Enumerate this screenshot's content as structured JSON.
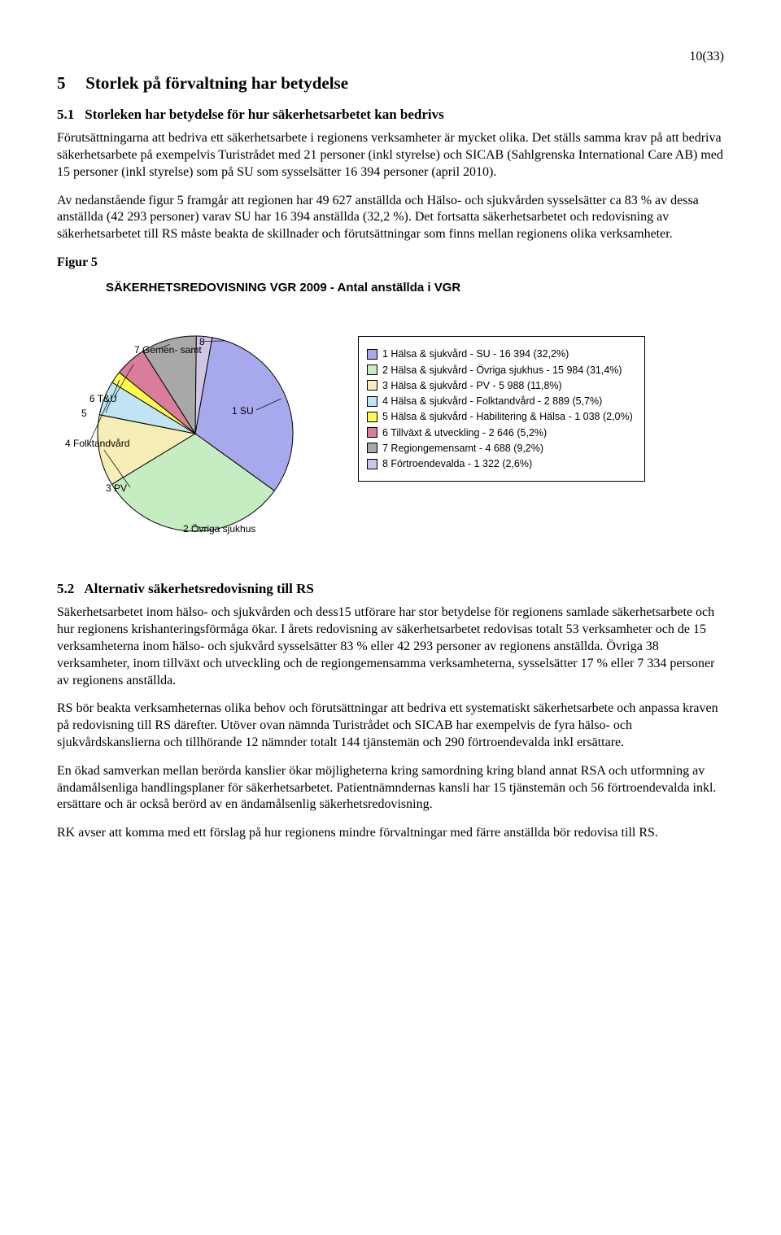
{
  "page_number": "10(33)",
  "section5": {
    "number": "5",
    "title": "Storlek på förvaltning har betydelse"
  },
  "section5_1": {
    "number": "5.1",
    "title": "Storleken har betydelse för hur säkerhetsarbetet kan bedrivs",
    "para1": "Förutsättningarna att bedriva ett säkerhetsarbete i regionens verksamheter är mycket olika. Det ställs samma krav på att bedriva säkerhetsarbete på exempelvis Turistrådet med 21 personer (inkl styrelse) och SICAB (Sahlgrenska International Care AB) med 15 personer (inkl styrelse) som på SU som sysselsätter 16 394 personer (april 2010).",
    "para2": "Av nedanstående figur 5 framgår att regionen har 49 627 anställda och Hälso- och sjukvården sysselsätter ca 83 % av dessa anställda (42 293 personer) varav SU har 16 394  anställda (32,2 %). Det fortsatta säkerhetsarbetet och redovisning av säkerhetsarbetet till RS måste beakta de skillnader och förutsättningar som finns mellan regionens olika verksamheter."
  },
  "figure5": {
    "label": "Figur 5",
    "title": "SÄKERHETSREDOVISNING VGR 2009 - Antal anställda i VGR",
    "slices": [
      {
        "label": "1 SU",
        "legend": "1 Hälsa & sjukvård - SU - 16 394 (32,2%)",
        "color": "#a8a8ec",
        "pct": 32.2
      },
      {
        "label": "2 Övriga sjukhus",
        "legend": "2 Hälsa & sjukvård - Övriga sjukhus - 15 984 (31,4%)",
        "color": "#c6edc1",
        "pct": 31.4
      },
      {
        "label": "3 PV",
        "legend": "3 Hälsa & sjukvård - PV - 5 988 (11,8%)",
        "color": "#f6edb7",
        "pct": 11.8
      },
      {
        "label": "4 Folktandvård",
        "legend": "4 Hälsa & sjukvård - Folktandvård - 2 889 (5,7%)",
        "color": "#c0e4f4",
        "pct": 5.7
      },
      {
        "label": "5",
        "legend": "5 Hälsa & sjukvård - Habilitering & Hälsa - 1 038 (2,0%)",
        "color": "#fffb4d",
        "pct": 2.0
      },
      {
        "label": "6 T&U",
        "legend": "6 Tillväxt & utveckling - 2 646 (5,2%)",
        "color": "#d97d9a",
        "pct": 5.2
      },
      {
        "label": "7 Gemen- samt",
        "legend": "7 Regiongemensamt - 4 688 (9,2%)",
        "color": "#a8a8a8",
        "pct": 9.2
      },
      {
        "label": "8",
        "legend": "8 Förtroendevalda - 1 322 (2,6%)",
        "color": "#cfc5e4",
        "pct": 2.6
      }
    ],
    "stroke": "#000000",
    "label_fontsize": 12
  },
  "section5_2": {
    "number": "5.2",
    "title": "Alternativ säkerhetsredovisning till RS",
    "para1": "Säkerhetsarbetet inom hälso- och sjukvården och dess15 utförare har stor betydelse för regionens samlade säkerhetsarbete och hur regionens krishanteringsförmåga ökar. I årets redovisning av säkerhetsarbetet redovisas totalt 53 verksamheter och de 15 verksamheterna inom hälso- och sjukvård sysselsätter 83 % eller 42 293 personer av regionens anställda. Övriga 38 verksamheter, inom tillväxt och utveckling och de regiongemensamma verksamheterna, sysselsätter 17 % eller 7 334 personer av regionens anställda.",
    "para2": "RS bör beakta verksamheternas olika behov och förutsättningar att bedriva ett systematiskt säkerhetsarbete och anpassa kraven på redovisning till RS därefter. Utöver ovan nämnda Turistrådet och SICAB har exempelvis de fyra hälso- och sjukvårdskanslierna och tillhörande 12 nämnder totalt 144 tjänstemän och 290 förtroendevalda inkl ersättare.",
    "para3": "En ökad samverkan mellan berörda kanslier ökar möjligheterna kring samordning kring bland annat RSA och utformning av ändamålsenliga handlingsplaner för säkerhetsarbetet. Patientnämndernas kansli har 15 tjänstemän och 56 förtroendevalda inkl. ersättare och är också berörd av en ändamålsenlig säkerhetsredovisning.",
    "para4": "RK avser att komma med ett förslag på hur regionens mindre förvaltningar med färre anställda bör redovisa till RS."
  }
}
